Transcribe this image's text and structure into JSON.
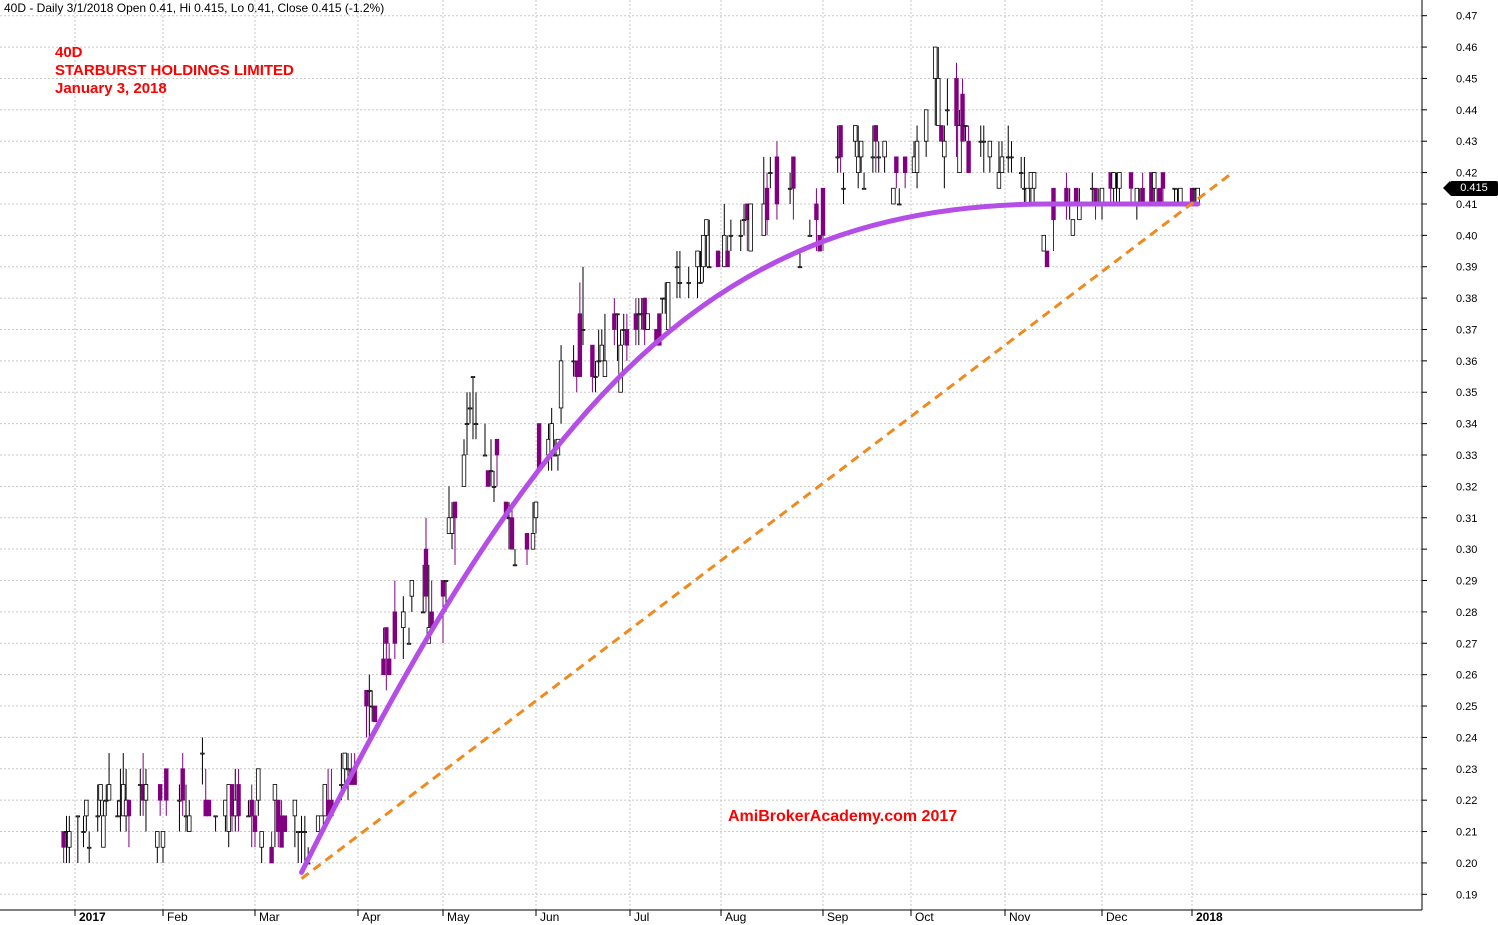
{
  "header": {
    "summary": "40D - Daily 3/1/2018 Open 0.41, Hi 0.415, Lo 0.41, Close 0.415 (-1.2%)"
  },
  "title": {
    "ticker": "40D",
    "company": "STARBURST HOLDINGS LIMITED",
    "date": "January 3, 2018"
  },
  "watermark": "AmiBrokerAcademy.com  2017",
  "last_price_label": "0.415",
  "colors": {
    "bull_candle": "#ffffff",
    "bear_candle": "#800080",
    "curve": "#b44ee6",
    "trendline": "#f08a1e",
    "grid": "#c8c8c8",
    "text_red": "#ff0000"
  },
  "chart_data": {
    "type": "candlestick",
    "ylim": [
      0.185,
      0.475
    ],
    "y_ticks": [
      "0.19",
      "0.20",
      "0.21",
      "0.22",
      "0.23",
      "0.24",
      "0.25",
      "0.26",
      "0.27",
      "0.28",
      "0.29",
      "0.30",
      "0.31",
      "0.32",
      "0.33",
      "0.34",
      "0.35",
      "0.36",
      "0.37",
      "0.38",
      "0.39",
      "0.40",
      "0.41",
      "0.42",
      "0.43",
      "0.44",
      "0.45",
      "0.46",
      "0.47"
    ],
    "x_labels": [
      "2017",
      "Feb",
      "Mar",
      "Apr",
      "May",
      "Jun",
      "Jul",
      "Aug",
      "Sep",
      "Oct",
      "Nov",
      "Dec",
      "2018"
    ],
    "x_label_bold": [
      true,
      false,
      false,
      false,
      false,
      false,
      false,
      false,
      false,
      false,
      false,
      false,
      true
    ],
    "anchors": [
      {
        "date": "2017-01-01",
        "high": 0.215,
        "low": 0.198
      },
      {
        "date": "2017-01-15",
        "high": 0.24,
        "low": 0.205
      },
      {
        "date": "2017-02-01",
        "high": 0.23,
        "low": 0.2
      },
      {
        "date": "2017-02-15",
        "high": 0.24,
        "low": 0.21
      },
      {
        "date": "2017-03-01",
        "high": 0.23,
        "low": 0.2
      },
      {
        "date": "2017-03-15",
        "high": 0.22,
        "low": 0.198
      },
      {
        "date": "2017-04-01",
        "high": 0.24,
        "low": 0.22
      },
      {
        "date": "2017-04-15",
        "high": 0.3,
        "low": 0.26
      },
      {
        "date": "2017-05-01",
        "high": 0.32,
        "low": 0.27
      },
      {
        "date": "2017-05-10",
        "high": 0.355,
        "low": 0.33
      },
      {
        "date": "2017-05-20",
        "high": 0.33,
        "low": 0.31
      },
      {
        "date": "2017-05-28",
        "high": 0.3,
        "low": 0.285
      },
      {
        "date": "2017-06-01",
        "high": 0.34,
        "low": 0.305
      },
      {
        "date": "2017-06-15",
        "high": 0.39,
        "low": 0.34
      },
      {
        "date": "2017-07-01",
        "high": 0.375,
        "low": 0.355
      },
      {
        "date": "2017-07-15",
        "high": 0.39,
        "low": 0.365
      },
      {
        "date": "2017-08-01",
        "high": 0.41,
        "low": 0.385
      },
      {
        "date": "2017-08-15",
        "high": 0.44,
        "low": 0.4
      },
      {
        "date": "2017-08-28",
        "high": 0.42,
        "low": 0.385
      },
      {
        "date": "2017-09-10",
        "high": 0.45,
        "low": 0.41
      },
      {
        "date": "2017-09-25",
        "high": 0.425,
        "low": 0.41
      },
      {
        "date": "2017-10-10",
        "high": 0.46,
        "low": 0.415
      },
      {
        "date": "2017-10-25",
        "high": 0.44,
        "low": 0.41
      },
      {
        "date": "2017-11-05",
        "high": 0.43,
        "low": 0.415
      },
      {
        "date": "2017-11-15",
        "high": 0.415,
        "low": 0.385
      },
      {
        "date": "2017-11-25",
        "high": 0.42,
        "low": 0.405
      },
      {
        "date": "2017-12-10",
        "high": 0.42,
        "low": 0.405
      },
      {
        "date": "2018-01-03",
        "high": 0.415,
        "low": 0.41
      }
    ],
    "curve_line": {
      "start": {
        "date": "2017-03-15",
        "price": 0.197
      },
      "peak": {
        "date": "2017-11-15",
        "price": 0.41
      },
      "end": {
        "date": "2018-01-03",
        "price": 0.41
      }
    },
    "trend_line": {
      "start": {
        "date": "2017-03-15",
        "price": 0.195
      },
      "end": {
        "date": "2018-01-15",
        "price": 0.42
      }
    },
    "last": {
      "date": "2018-01-03",
      "open": 0.41,
      "high": 0.415,
      "low": 0.41,
      "close": 0.415
    }
  }
}
